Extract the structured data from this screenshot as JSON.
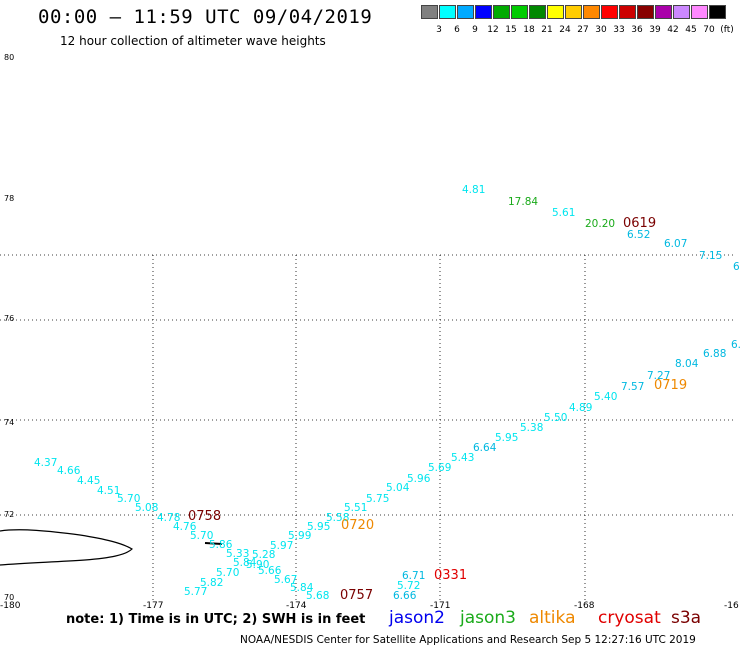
{
  "title": "00:00 – 11:59 UTC 09/04/2019",
  "subtitle": "12 hour collection of altimeter wave heights",
  "colorbar": {
    "unit": "(ft)",
    "ticks": [
      "3",
      "6",
      "9",
      "12",
      "15",
      "18",
      "21",
      "24",
      "27",
      "30",
      "33",
      "36",
      "39",
      "42",
      "45",
      "70"
    ],
    "colors": [
      "#808080",
      "#00ffff",
      "#00aaff",
      "#0000ff",
      "#00aa00",
      "#00cc00",
      "#008800",
      "#ffff00",
      "#ffcc00",
      "#ff8800",
      "#ff0000",
      "#cc0000",
      "#880000",
      "#aa00aa",
      "#cc88ff",
      "#ff88ff",
      "#000000"
    ]
  },
  "axes": {
    "y_labels": [
      "80",
      "78",
      "76",
      "74",
      "72",
      "70"
    ],
    "x_labels": [
      "-180",
      "-177",
      "-174",
      "-171",
      "-168",
      "-16"
    ]
  },
  "colors": {
    "cyan": "#00e5ee",
    "teal": "#00b8e0",
    "green": "#1aaa1a",
    "darkred": "#7a0000",
    "orange": "#ee8800",
    "red": "#e00000",
    "blue": "#0000ee"
  },
  "wave_labels": [
    {
      "text": "4.81",
      "c": "cyan"
    },
    {
      "text": "17.84",
      "c": "green"
    },
    {
      "text": "5.61",
      "c": "cyan"
    },
    {
      "text": "20.20",
      "c": "green"
    },
    {
      "text": "6.52",
      "c": "teal"
    },
    {
      "text": "6.07",
      "c": "teal"
    },
    {
      "text": "7.15",
      "c": "teal"
    },
    {
      "text": "6",
      "c": "teal"
    },
    {
      "text": "6.",
      "c": "teal"
    },
    {
      "text": "6.88",
      "c": "teal"
    },
    {
      "text": "8.04",
      "c": "teal"
    },
    {
      "text": "7.27",
      "c": "teal"
    },
    {
      "text": "7.57",
      "c": "teal"
    },
    {
      "text": "5.40",
      "c": "cyan"
    },
    {
      "text": "4.89",
      "c": "cyan"
    },
    {
      "text": "5.50",
      "c": "cyan"
    },
    {
      "text": "5.38",
      "c": "cyan"
    },
    {
      "text": "5.95",
      "c": "cyan"
    },
    {
      "text": "6.64",
      "c": "teal"
    },
    {
      "text": "5.43",
      "c": "cyan"
    },
    {
      "text": "5.69",
      "c": "cyan"
    },
    {
      "text": "5.96",
      "c": "cyan"
    },
    {
      "text": "5.04",
      "c": "cyan"
    },
    {
      "text": "5.75",
      "c": "cyan"
    },
    {
      "text": "5.51",
      "c": "cyan"
    },
    {
      "text": "5.58",
      "c": "cyan"
    },
    {
      "text": "5.95",
      "c": "cyan"
    },
    {
      "text": "5.99",
      "c": "cyan"
    },
    {
      "text": "5.97",
      "c": "cyan"
    },
    {
      "text": "4.37",
      "c": "cyan"
    },
    {
      "text": "4.66",
      "c": "cyan"
    },
    {
      "text": "4.45",
      "c": "cyan"
    },
    {
      "text": "4.51",
      "c": "cyan"
    },
    {
      "text": "5.70",
      "c": "cyan"
    },
    {
      "text": "5.08",
      "c": "cyan"
    },
    {
      "text": "4.78",
      "c": "cyan"
    },
    {
      "text": "4.76",
      "c": "cyan"
    },
    {
      "text": "5.70",
      "c": "cyan"
    },
    {
      "text": "5.86",
      "c": "cyan"
    },
    {
      "text": "5.33",
      "c": "cyan"
    },
    {
      "text": "5.28",
      "c": "cyan"
    },
    {
      "text": "5.84",
      "c": "cyan"
    },
    {
      "text": "5.90",
      "c": "cyan"
    },
    {
      "text": "5.66",
      "c": "cyan"
    },
    {
      "text": "5.70",
      "c": "cyan"
    },
    {
      "text": "5.82",
      "c": "cyan"
    },
    {
      "text": "5.77",
      "c": "cyan"
    },
    {
      "text": "5.67",
      "c": "cyan"
    },
    {
      "text": "5.84",
      "c": "cyan"
    },
    {
      "text": "5.68",
      "c": "cyan"
    },
    {
      "text": "6.71",
      "c": "teal"
    },
    {
      "text": "5.72",
      "c": "cyan"
    },
    {
      "text": "6.66",
      "c": "teal"
    }
  ],
  "time_labels": [
    {
      "text": "0619",
      "c": "darkred"
    },
    {
      "text": "0719",
      "c": "orange"
    },
    {
      "text": "0720",
      "c": "orange"
    },
    {
      "text": "0758",
      "c": "darkred"
    },
    {
      "text": "0331",
      "c": "red"
    },
    {
      "text": "0757",
      "c": "darkred"
    }
  ],
  "note": "note: 1) Time is in UTC; 2) SWH is in feet",
  "missions": [
    {
      "text": "jason2",
      "c": "blue"
    },
    {
      "text": "jason3",
      "c": "green"
    },
    {
      "text": "altika",
      "c": "orange"
    },
    {
      "text": "cryosat",
      "c": "red"
    },
    {
      "text": "s3a",
      "c": "darkred"
    }
  ],
  "credit": "NOAA/NESDIS Center for Satellite Applications and Research   Sep  5 12:27:16 UTC 2019"
}
